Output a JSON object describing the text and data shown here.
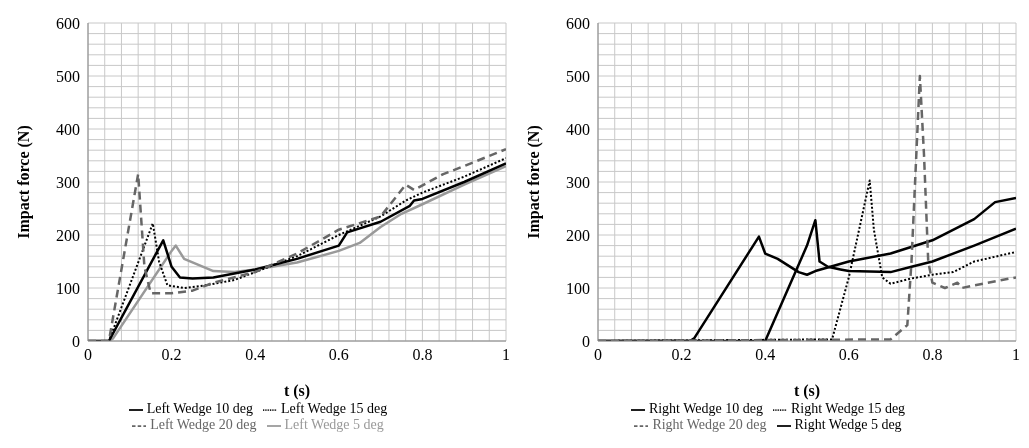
{
  "chart_data": [
    {
      "type": "line",
      "xlabel": "t (s)",
      "ylabel": "Impact force (N)",
      "xlim": [
        0,
        1
      ],
      "ylim": [
        0,
        600
      ],
      "xticks": [
        0,
        {
          "value": 0.04,
          "label": null
        },
        {
          "value": 0.08,
          "label": null
        },
        {
          "value": 0.12,
          "label": null
        },
        {
          "value": 0.16,
          "label": null
        },
        0.2,
        {
          "value": 0.24,
          "label": null
        },
        {
          "value": 0.28,
          "label": null
        },
        {
          "value": 0.32,
          "label": null
        },
        {
          "value": 0.36,
          "label": null
        },
        0.4,
        {
          "value": 0.44,
          "label": null
        },
        {
          "value": 0.48,
          "label": null
        },
        {
          "value": 0.52,
          "label": null
        },
        {
          "value": 0.56,
          "label": null
        },
        0.6,
        {
          "value": 0.64,
          "label": null
        },
        {
          "value": 0.68,
          "label": null
        },
        {
          "value": 0.72,
          "label": null
        },
        {
          "value": 0.76,
          "label": null
        },
        0.8,
        {
          "value": 0.84,
          "label": null
        },
        {
          "value": 0.88,
          "label": null
        },
        {
          "value": 0.92,
          "label": null
        },
        {
          "value": 0.96,
          "label": null
        },
        1
      ],
      "yticks": [
        0,
        {
          "value": 20,
          "label": null
        },
        {
          "value": 40,
          "label": null
        },
        {
          "value": 60,
          "label": null
        },
        {
          "value": 80,
          "label": null
        },
        100,
        {
          "value": 120,
          "label": null
        },
        {
          "value": 140,
          "label": null
        },
        {
          "value": 160,
          "label": null
        },
        {
          "value": 180,
          "label": null
        },
        200,
        {
          "value": 220,
          "label": null
        },
        {
          "value": 240,
          "label": null
        },
        {
          "value": 260,
          "label": null
        },
        {
          "value": 280,
          "label": null
        },
        300,
        {
          "value": 320,
          "label": null
        },
        {
          "value": 340,
          "label": null
        },
        {
          "value": 360,
          "label": null
        },
        {
          "value": 380,
          "label": null
        },
        400,
        {
          "value": 420,
          "label": null
        },
        {
          "value": 440,
          "label": null
        },
        {
          "value": 460,
          "label": null
        },
        {
          "value": 480,
          "label": null
        },
        500,
        {
          "value": 520,
          "label": null
        },
        {
          "value": 540,
          "label": null
        },
        {
          "value": 560,
          "label": null
        },
        {
          "value": 580,
          "label": null
        },
        600
      ],
      "grid": true,
      "legend": "bottom",
      "marker": "none",
      "series": [
        {
          "name": "Left Wedge 5 deg",
          "color": "#999999",
          "line_style": "solid",
          "x": [
            0,
            0.05,
            0.06,
            0.2,
            0.21,
            0.23,
            0.26,
            0.3,
            0.35,
            0.4,
            0.5,
            0.6,
            0.65,
            0.7,
            0.75,
            0.8,
            0.9,
            1
          ],
          "values": [
            0,
            0,
            5,
            170,
            180,
            155,
            145,
            132,
            130,
            135,
            148,
            170,
            185,
            215,
            240,
            258,
            295,
            330
          ]
        },
        {
          "name": "Left Wedge 10 deg",
          "color": "#000000",
          "line_style": "solid",
          "x": [
            0,
            0.05,
            0.18,
            0.2,
            0.22,
            0.25,
            0.3,
            0.4,
            0.5,
            0.6,
            0.62,
            0.7,
            0.77,
            0.78,
            0.8,
            0.9,
            1
          ],
          "values": [
            0,
            0,
            190,
            140,
            120,
            118,
            120,
            135,
            155,
            180,
            205,
            225,
            255,
            265,
            268,
            300,
            335
          ]
        },
        {
          "name": "Left Wedge 15 deg",
          "color": "#000000",
          "line_style": "dotted",
          "x": [
            0,
            0.05,
            0.155,
            0.17,
            0.19,
            0.23,
            0.28,
            0.35,
            0.4,
            0.5,
            0.6,
            0.7,
            0.76,
            0.8,
            0.9,
            1
          ],
          "values": [
            0,
            0,
            222,
            150,
            105,
            100,
            105,
            115,
            130,
            160,
            200,
            235,
            265,
            280,
            310,
            345
          ]
        },
        {
          "name": "Left Wedge 20 deg",
          "color": "#666666",
          "line_style": "dashed",
          "x": [
            0,
            0.05,
            0.12,
            0.135,
            0.15,
            0.2,
            0.25,
            0.3,
            0.4,
            0.5,
            0.6,
            0.7,
            0.76,
            0.78,
            0.85,
            0.9,
            1
          ],
          "values": [
            0,
            0,
            315,
            140,
            90,
            90,
            95,
            110,
            130,
            165,
            210,
            235,
            295,
            285,
            315,
            330,
            362
          ]
        }
      ]
    },
    {
      "type": "line",
      "xlabel": "t (s)",
      "ylabel": "Impact force (N)",
      "xlim": [
        0,
        1
      ],
      "ylim": [
        0,
        600
      ],
      "xticks": [
        0,
        {
          "value": 0.04,
          "label": null
        },
        {
          "value": 0.08,
          "label": null
        },
        {
          "value": 0.12,
          "label": null
        },
        {
          "value": 0.16,
          "label": null
        },
        0.2,
        {
          "value": 0.24,
          "label": null
        },
        {
          "value": 0.28,
          "label": null
        },
        {
          "value": 0.32,
          "label": null
        },
        {
          "value": 0.36,
          "label": null
        },
        0.4,
        {
          "value": 0.44,
          "label": null
        },
        {
          "value": 0.48,
          "label": null
        },
        {
          "value": 0.52,
          "label": null
        },
        {
          "value": 0.56,
          "label": null
        },
        0.6,
        {
          "value": 0.64,
          "label": null
        },
        {
          "value": 0.68,
          "label": null
        },
        {
          "value": 0.72,
          "label": null
        },
        {
          "value": 0.76,
          "label": null
        },
        0.8,
        {
          "value": 0.84,
          "label": null
        },
        {
          "value": 0.88,
          "label": null
        },
        {
          "value": 0.92,
          "label": null
        },
        {
          "value": 0.96,
          "label": null
        },
        1
      ],
      "yticks": [
        0,
        {
          "value": 20,
          "label": null
        },
        {
          "value": 40,
          "label": null
        },
        {
          "value": 60,
          "label": null
        },
        {
          "value": 80,
          "label": null
        },
        100,
        {
          "value": 120,
          "label": null
        },
        {
          "value": 140,
          "label": null
        },
        {
          "value": 160,
          "label": null
        },
        {
          "value": 180,
          "label": null
        },
        200,
        {
          "value": 220,
          "label": null
        },
        {
          "value": 240,
          "label": null
        },
        {
          "value": 260,
          "label": null
        },
        {
          "value": 280,
          "label": null
        },
        300,
        {
          "value": 320,
          "label": null
        },
        {
          "value": 340,
          "label": null
        },
        {
          "value": 360,
          "label": null
        },
        {
          "value": 380,
          "label": null
        },
        400,
        {
          "value": 420,
          "label": null
        },
        {
          "value": 440,
          "label": null
        },
        {
          "value": 460,
          "label": null
        },
        {
          "value": 480,
          "label": null
        },
        500,
        {
          "value": 520,
          "label": null
        },
        {
          "value": 540,
          "label": null
        },
        {
          "value": 560,
          "label": null
        },
        {
          "value": 580,
          "label": null
        },
        600
      ],
      "grid": true,
      "legend": "bottom",
      "marker": "none",
      "series": [
        {
          "name": "Right Wedge 5 deg",
          "color": "#000000",
          "line_style": "solid",
          "x": [
            0,
            0.22,
            0.23,
            0.385,
            0.4,
            0.43,
            0.48,
            0.5,
            0.52,
            0.6,
            0.7,
            0.8,
            0.9,
            0.95,
            1
          ],
          "values": [
            0,
            0,
            5,
            197,
            165,
            155,
            130,
            125,
            132,
            150,
            165,
            190,
            230,
            262,
            270
          ]
        },
        {
          "name": "Right Wedge 10 deg",
          "color": "#000000",
          "line_style": "solid",
          "x": [
            0,
            0.4,
            0.5,
            0.52,
            0.53,
            0.55,
            0.58,
            0.6,
            0.7,
            0.75,
            0.8,
            0.9,
            1
          ],
          "values": [
            0,
            0,
            180,
            228,
            150,
            140,
            135,
            132,
            130,
            140,
            150,
            180,
            212
          ]
        },
        {
          "name": "Right Wedge 15 deg",
          "color": "#000000",
          "line_style": "dotted",
          "x": [
            0,
            0.56,
            0.6,
            0.65,
            0.66,
            0.68,
            0.7,
            0.75,
            0.8,
            0.85,
            0.9,
            1
          ],
          "values": [
            0,
            3,
            120,
            303,
            210,
            120,
            108,
            118,
            125,
            130,
            150,
            168
          ]
        },
        {
          "name": "Right Wedge 20 deg",
          "color": "#666666",
          "line_style": "dashed",
          "x": [
            0,
            0.7,
            0.74,
            0.75,
            0.77,
            0.78,
            0.79,
            0.8,
            0.83,
            0.86,
            0.87,
            0.9,
            1
          ],
          "values": [
            0,
            3,
            30,
            150,
            500,
            350,
            150,
            110,
            100,
            110,
            100,
            105,
            120
          ]
        }
      ]
    }
  ]
}
